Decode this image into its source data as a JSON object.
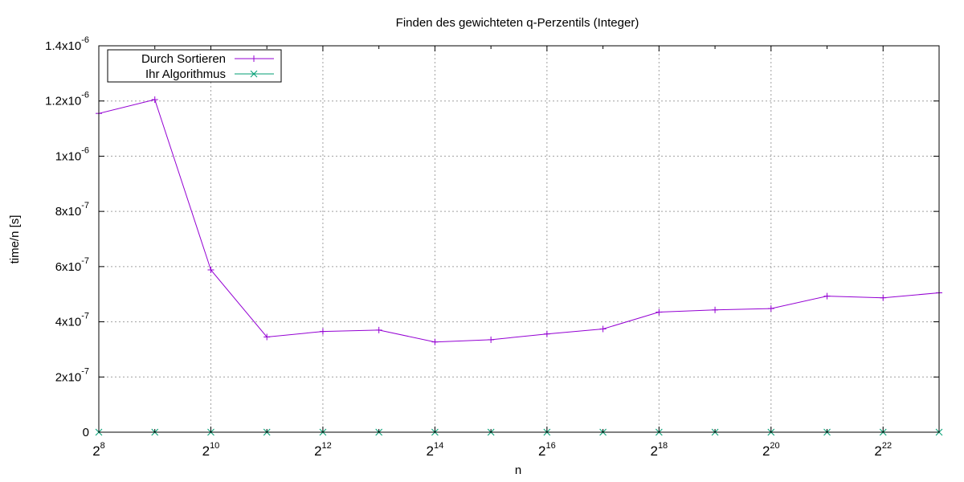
{
  "chart_data": {
    "type": "line",
    "title": "Finden des gewichteten q-Perzentils (Integer)",
    "xlabel": "n",
    "ylabel": "time/n [s]",
    "x_scale": "log2",
    "x": [
      256,
      512,
      1024,
      2048,
      4096,
      8192,
      16384,
      32768,
      65536,
      131072,
      262144,
      524288,
      1048576,
      2097152,
      4194304,
      8388608
    ],
    "xlim": [
      256,
      8388608
    ],
    "ylim": [
      0,
      1.4e-06
    ],
    "grid": true,
    "legend_position": "top-left",
    "x_ticks": [
      {
        "value": 256,
        "base": "2",
        "exp": "8"
      },
      {
        "value": 1024,
        "base": "2",
        "exp": "10"
      },
      {
        "value": 4096,
        "base": "2",
        "exp": "12"
      },
      {
        "value": 16384,
        "base": "2",
        "exp": "14"
      },
      {
        "value": 65536,
        "base": "2",
        "exp": "16"
      },
      {
        "value": 262144,
        "base": "2",
        "exp": "18"
      },
      {
        "value": 1048576,
        "base": "2",
        "exp": "20"
      },
      {
        "value": 4194304,
        "base": "2",
        "exp": "22"
      }
    ],
    "y_ticks": [
      {
        "value": 0,
        "mant": "0",
        "exp": ""
      },
      {
        "value": 2e-07,
        "mant": "2x10",
        "exp": "-7"
      },
      {
        "value": 4e-07,
        "mant": "4x10",
        "exp": "-7"
      },
      {
        "value": 6e-07,
        "mant": "6x10",
        "exp": "-7"
      },
      {
        "value": 8e-07,
        "mant": "8x10",
        "exp": "-7"
      },
      {
        "value": 1e-06,
        "mant": "1x10",
        "exp": "-6"
      },
      {
        "value": 1.2e-06,
        "mant": "1.2x10",
        "exp": "-6"
      },
      {
        "value": 1.4e-06,
        "mant": "1.4x10",
        "exp": "-6"
      }
    ],
    "series": [
      {
        "name": "Durch Sortieren",
        "color": "#9400d3",
        "marker": "plus",
        "values": [
          1.155e-06,
          1.205e-06,
          5.88e-07,
          3.45e-07,
          3.65e-07,
          3.7e-07,
          3.27e-07,
          3.35e-07,
          3.56e-07,
          3.74e-07,
          4.35e-07,
          4.43e-07,
          4.48e-07,
          4.93e-07,
          4.87e-07,
          5.05e-07
        ]
      },
      {
        "name": "Ihr Algorithmus",
        "color": "#009e73",
        "marker": "cross",
        "values": [
          0,
          0,
          0,
          0,
          0,
          0,
          0,
          0,
          0,
          0,
          0,
          0,
          0,
          0,
          0,
          0
        ]
      }
    ]
  }
}
